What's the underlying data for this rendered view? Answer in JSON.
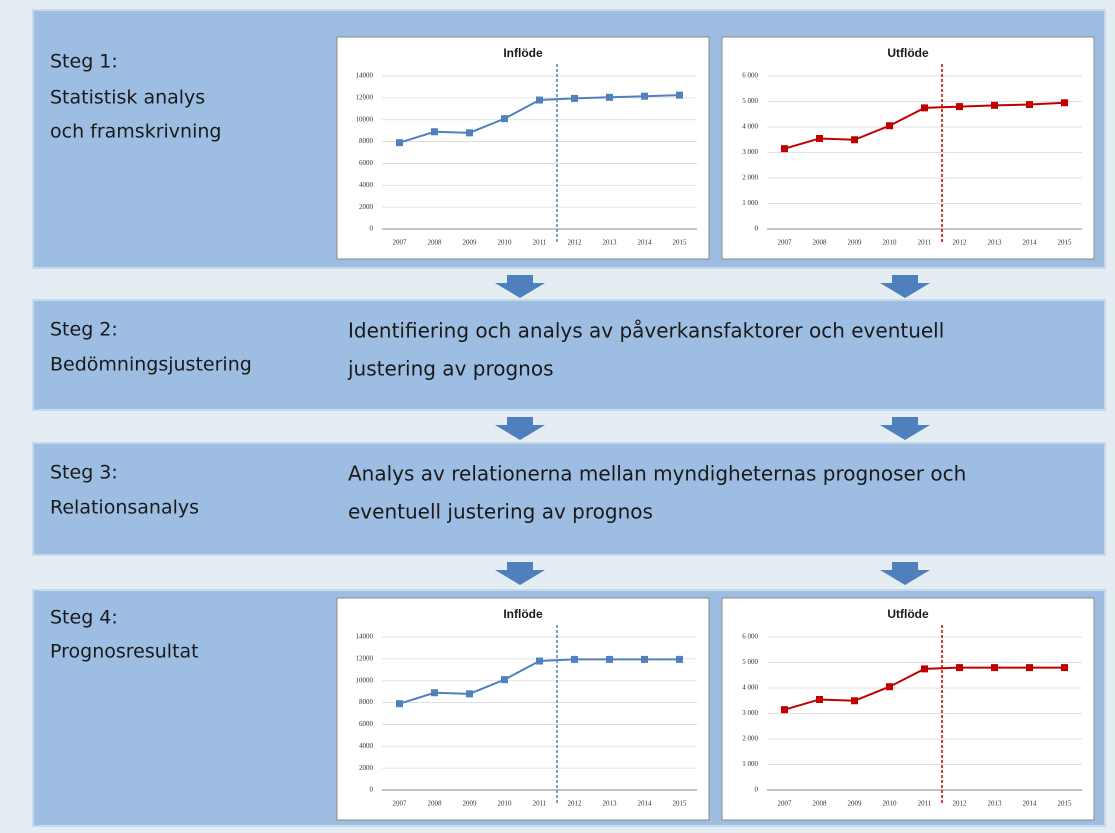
{
  "steps": [
    {
      "title": "Steg 1:",
      "label_lines": [
        "Statistisk analys",
        "och framskrivning"
      ]
    },
    {
      "title": "Steg 2:",
      "label_lines": [
        "Bedömningsjustering"
      ],
      "description_lines": [
        "Identifiering och analys av påverkansfaktorer och eventuell",
        "justering av prognos"
      ]
    },
    {
      "title": "Steg 3:",
      "label_lines": [
        "Relationsanalys"
      ],
      "description_lines": [
        "Analys av relationerna mellan myndigheternas prognoser och",
        "eventuell justering av prognos"
      ]
    },
    {
      "title": "Steg 4:",
      "label_lines": [
        "Prognosresultat"
      ]
    }
  ],
  "chart_data": [
    {
      "type": "line",
      "title": "Inflöde",
      "categories": [
        "2007",
        "2008",
        "2009",
        "2010",
        "2011",
        "2012",
        "2013",
        "2014",
        "2015"
      ],
      "values": [
        7900,
        8900,
        8800,
        10100,
        11800,
        11950,
        12050,
        12150,
        12250
      ],
      "color": "#4f81bd",
      "ylim": [
        0,
        14000
      ],
      "yticks": [
        0,
        2000,
        4000,
        6000,
        8000,
        10000,
        12000,
        14000
      ],
      "grid": true
    },
    {
      "type": "line",
      "title": "Utflöde",
      "categories": [
        "2007",
        "2008",
        "2009",
        "2010",
        "2011",
        "2012",
        "2013",
        "2014",
        "2015"
      ],
      "values": [
        3150,
        3550,
        3500,
        4050,
        4750,
        4800,
        4850,
        4880,
        4950
      ],
      "color": "#c00000",
      "ylim": [
        0,
        6000
      ],
      "yticks": [
        0,
        {
          "value": 1000,
          "label": "1 000"
        },
        {
          "value": 2000,
          "label": "2 000"
        },
        {
          "value": 3000,
          "label": "3 000"
        },
        {
          "value": 4000,
          "label": "4 000"
        },
        {
          "value": 5000,
          "label": "5 000"
        },
        {
          "value": 6000,
          "label": "6 000"
        }
      ],
      "grid": true
    },
    {
      "type": "line",
      "title": "Inflöde",
      "categories": [
        "2007",
        "2008",
        "2009",
        "2010",
        "2011",
        "2012",
        "2013",
        "2014",
        "2015"
      ],
      "values": [
        7900,
        8900,
        8800,
        10100,
        11800,
        11950,
        11950,
        11950,
        11950
      ],
      "color": "#4f81bd",
      "ylim": [
        0,
        14000
      ],
      "yticks": [
        0,
        2000,
        4000,
        6000,
        8000,
        10000,
        12000,
        14000
      ],
      "grid": true
    },
    {
      "type": "line",
      "title": "Utflöde",
      "categories": [
        "2007",
        "2008",
        "2009",
        "2010",
        "2011",
        "2012",
        "2013",
        "2014",
        "2015"
      ],
      "values": [
        3150,
        3550,
        3500,
        4050,
        4750,
        4800,
        4800,
        4800,
        4800
      ],
      "color": "#c00000",
      "ylim": [
        0,
        6000
      ],
      "yticks": [
        0,
        {
          "value": 1000,
          "label": "1 000"
        },
        {
          "value": 2000,
          "label": "2 000"
        },
        {
          "value": 3000,
          "label": "3 000"
        },
        {
          "value": 4000,
          "label": "4 000"
        },
        {
          "value": 5000,
          "label": "5 000"
        },
        {
          "value": 6000,
          "label": "6 000"
        }
      ],
      "grid": true
    }
  ]
}
